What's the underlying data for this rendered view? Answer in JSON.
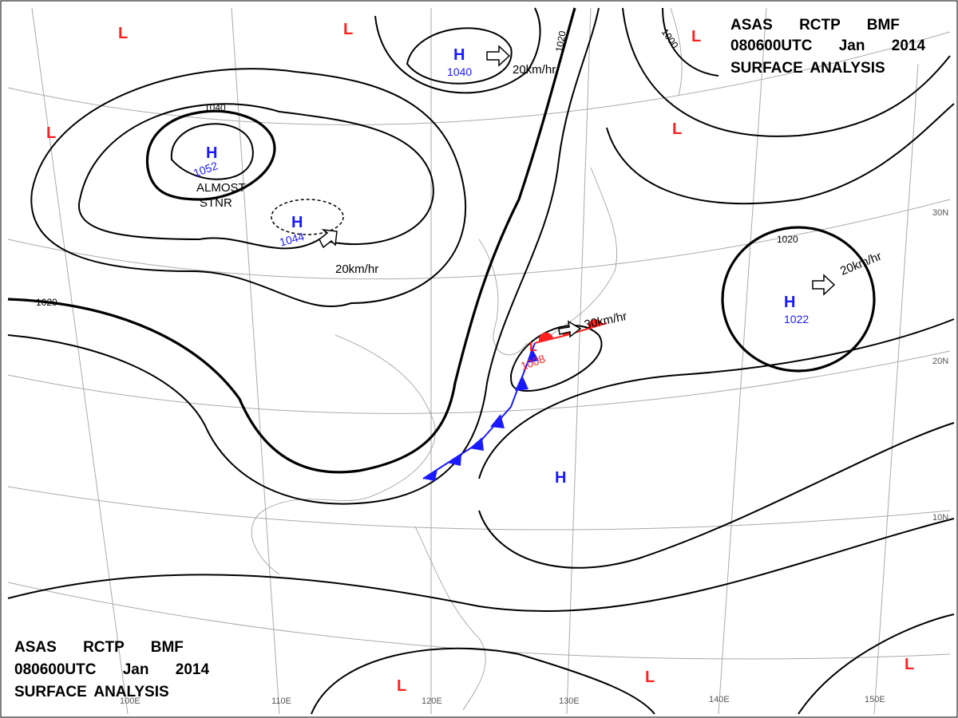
{
  "header_top": {
    "line1": "ASAS RCTP BMF",
    "line2": "080600UTC Jan 2014",
    "line3": "SURFACE ANALYSIS"
  },
  "header_bottom": {
    "line1": "ASAS RCTP BMF",
    "line2": "080600UTC Jan 2014",
    "line3": "SURFACE ANALYSIS"
  },
  "pressure_centers": [
    {
      "type": "H",
      "pressure": 1052
    },
    {
      "type": "H",
      "pressure": 1044
    },
    {
      "type": "H",
      "pressure": 1040
    },
    {
      "type": "H",
      "pressure": 1022
    },
    {
      "type": "L",
      "pressure": 1008
    },
    {
      "type": "H"
    },
    {
      "type": "L"
    },
    {
      "type": "L"
    },
    {
      "type": "L"
    },
    {
      "type": "L"
    },
    {
      "type": "L"
    },
    {
      "type": "L"
    },
    {
      "type": "L"
    },
    {
      "type": "L"
    }
  ],
  "annotations": {
    "stationary": [
      "ALMOST",
      "STNR"
    ],
    "motions": [
      "20km/hr",
      "20km/hr",
      "20km/hr",
      "30km/hr"
    ]
  },
  "isobar_labels": [
    1040,
    1020,
    1020,
    1000,
    1020
  ],
  "longitudes": [
    "100E",
    "110E",
    "120E",
    "130E",
    "140E",
    "150E"
  ],
  "latitudes": [
    "30N",
    "20N",
    "10N"
  ]
}
